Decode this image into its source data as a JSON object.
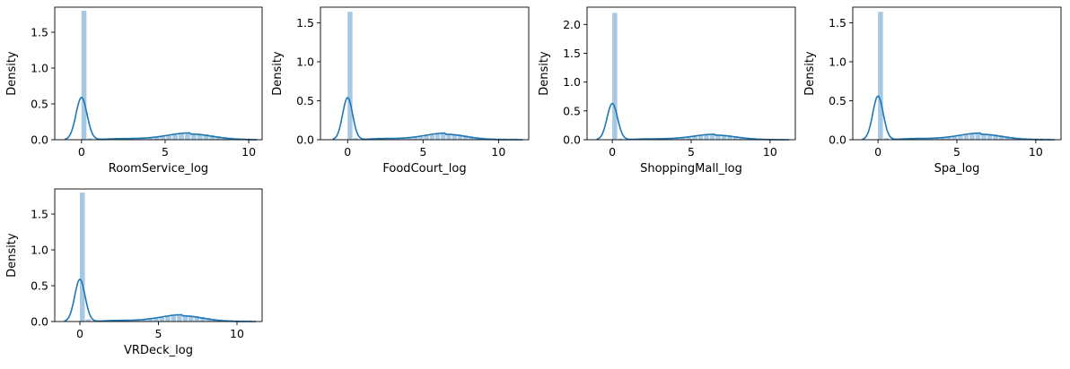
{
  "chart_data": [
    {
      "type": "histogram+kde",
      "xlabel": "RoomService_log",
      "ylabel": "Density",
      "xlim": [
        -1.6,
        10.8
      ],
      "ylim": [
        0,
        1.85
      ],
      "xticks": [
        0,
        5,
        10
      ],
      "yticks": [
        0.0,
        0.5,
        1.0,
        1.5
      ],
      "xtick_labels": [
        "0",
        "5",
        "10"
      ],
      "ytick_labels": [
        "0.0",
        "0.5",
        "1.0",
        "1.5"
      ],
      "bars": [
        {
          "x0": 0.0,
          "x1": 0.35,
          "density": 1.8
        },
        {
          "x0": 0.35,
          "x1": 0.7,
          "density": 0.02
        }
      ],
      "kde_peak": 0.59,
      "kde_peak_x": 0.0,
      "kde_hump": 0.08,
      "kde_hump_x": 6.5,
      "tail_density": 0.015,
      "kde_range": [
        -1.0,
        10.5
      ]
    },
    {
      "type": "histogram+kde",
      "xlabel": "FoodCourt_log",
      "ylabel": "Density",
      "xlim": [
        -1.8,
        12.0
      ],
      "ylim": [
        0,
        1.7
      ],
      "xticks": [
        0,
        5,
        10
      ],
      "yticks": [
        0.0,
        0.5,
        1.0,
        1.5
      ],
      "xtick_labels": [
        "0",
        "5",
        "10"
      ],
      "ytick_labels": [
        "0.0",
        "0.5",
        "1.0",
        "1.5"
      ],
      "bars": [
        {
          "x0": 0.0,
          "x1": 0.38,
          "density": 1.64
        },
        {
          "x0": 0.38,
          "x1": 0.76,
          "density": 0.02
        }
      ],
      "kde_peak": 0.54,
      "kde_peak_x": 0.0,
      "kde_hump": 0.07,
      "kde_hump_x": 6.5,
      "tail_density": 0.015,
      "kde_range": [
        -1.0,
        11.6
      ]
    },
    {
      "type": "histogram+kde",
      "xlabel": "ShoppingMall_log",
      "ylabel": "Density",
      "xlim": [
        -1.6,
        11.6
      ],
      "ylim": [
        0,
        2.3
      ],
      "xticks": [
        0,
        5,
        10
      ],
      "yticks": [
        0.0,
        0.5,
        1.0,
        1.5,
        2.0
      ],
      "xtick_labels": [
        "0",
        "5",
        "10"
      ],
      "ytick_labels": [
        "0.0",
        "0.5",
        "1.0",
        "1.5",
        "2.0"
      ],
      "bars": [
        {
          "x0": 0.0,
          "x1": 0.37,
          "density": 2.2
        },
        {
          "x0": 0.37,
          "x1": 0.74,
          "density": 0.02
        }
      ],
      "kde_peak": 0.63,
      "kde_peak_x": 0.0,
      "kde_hump": 0.08,
      "kde_hump_x": 6.5,
      "tail_density": 0.015,
      "kde_range": [
        -1.0,
        11.2
      ]
    },
    {
      "type": "histogram+kde",
      "xlabel": "Spa_log",
      "ylabel": "Density",
      "xlim": [
        -1.6,
        11.6
      ],
      "ylim": [
        0,
        1.7
      ],
      "xticks": [
        0,
        5,
        10
      ],
      "yticks": [
        0.0,
        0.5,
        1.0,
        1.5
      ],
      "xtick_labels": [
        "0",
        "5",
        "10"
      ],
      "ytick_labels": [
        "0.0",
        "0.5",
        "1.0",
        "1.5"
      ],
      "bars": [
        {
          "x0": 0.0,
          "x1": 0.37,
          "density": 1.64
        },
        {
          "x0": 0.37,
          "x1": 0.74,
          "density": 0.02
        }
      ],
      "kde_peak": 0.56,
      "kde_peak_x": 0.0,
      "kde_hump": 0.07,
      "kde_hump_x": 6.5,
      "tail_density": 0.015,
      "kde_range": [
        -1.0,
        11.2
      ]
    },
    {
      "type": "histogram+kde",
      "xlabel": "VRDeck_log",
      "ylabel": "Density",
      "xlim": [
        -1.6,
        11.6
      ],
      "ylim": [
        0,
        1.85
      ],
      "xticks": [
        0,
        5,
        10
      ],
      "yticks": [
        0.0,
        0.5,
        1.0,
        1.5
      ],
      "xtick_labels": [
        "0",
        "5",
        "10"
      ],
      "ytick_labels": [
        "0.0",
        "0.5",
        "1.0",
        "1.5"
      ],
      "bars": [
        {
          "x0": 0.0,
          "x1": 0.37,
          "density": 1.8
        },
        {
          "x0": 0.37,
          "x1": 0.74,
          "density": 0.03
        }
      ],
      "kde_peak": 0.59,
      "kde_peak_x": 0.0,
      "kde_hump": 0.08,
      "kde_hump_x": 6.5,
      "tail_density": 0.015,
      "kde_range": [
        -1.0,
        11.2
      ]
    }
  ],
  "colors": {
    "bar": "#a6c8e2",
    "kde": "#1f77b4",
    "axis": "#000000",
    "background": "#ffffff"
  }
}
